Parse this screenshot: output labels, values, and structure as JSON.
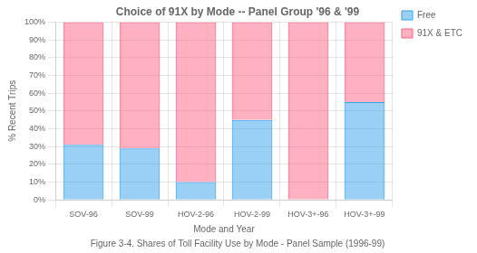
{
  "chart_data": {
    "type": "bar",
    "stacked": true,
    "title": "Choice of 91X by Mode -- Panel Group '96 & '99",
    "xlabel": "Mode and Year",
    "ylabel": "% Recent Trips",
    "caption": "Figure 3-4. Shares of Toll Facility Use by Mode - Panel Sample (1996-99)",
    "categories": [
      "SOV-96",
      "SOV-99",
      "HOV-2-96",
      "HOV-2-99",
      "HOV-3+-96",
      "HOV-3+-99"
    ],
    "series": [
      {
        "name": "Free",
        "values": [
          0.31,
          0.29,
          0.1,
          0.45,
          0.0,
          0.55
        ]
      },
      {
        "name": "91X & ETC",
        "values": [
          0.69,
          0.71,
          0.9,
          0.55,
          1.0,
          0.45
        ]
      }
    ],
    "ylim": [
      0,
      1.0
    ],
    "yticks": [
      {
        "value": 0.0,
        "label": "0%"
      },
      {
        "value": 0.1,
        "label": "10%"
      },
      {
        "value": 0.2,
        "label": "20%"
      },
      {
        "value": 0.3,
        "label": "30%"
      },
      {
        "value": 0.4,
        "label": "40%"
      },
      {
        "value": 0.5,
        "label": "50%"
      },
      {
        "value": 0.6,
        "label": "60%"
      },
      {
        "value": 0.7,
        "label": "70%"
      },
      {
        "value": 0.8,
        "label": "80%"
      },
      {
        "value": 0.9,
        "label": "90%"
      },
      {
        "value": 1.0,
        "label": "100%"
      }
    ],
    "grid": true,
    "legend": "right"
  }
}
